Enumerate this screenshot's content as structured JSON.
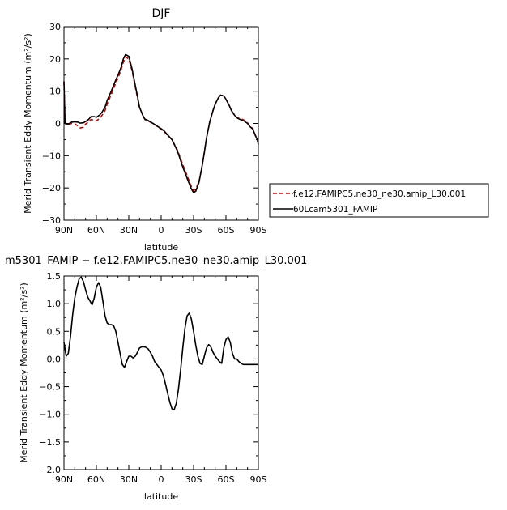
{
  "chart_data": [
    {
      "type": "line",
      "title": "DJF",
      "xlabel": "latitude",
      "ylabel": "Merid Transient Eddy Momentum (m²/s²)",
      "xlim": [
        90,
        -90
      ],
      "ylim": [
        -30,
        30
      ],
      "xticks": [
        "90N",
        "60N",
        "30N",
        "0",
        "30S",
        "60S",
        "90S"
      ],
      "yticks": [
        "30",
        "20",
        "10",
        "0",
        "−10",
        "−20",
        "−30"
      ],
      "grid": false,
      "legend_position": "right, outside plot",
      "series": [
        {
          "name": "f.e12.FAMIPC5.ne30_ne30.amip_L30.001",
          "color": "#d00000",
          "dash": "dashed",
          "x": [
            90,
            89,
            87,
            85,
            83,
            80,
            77,
            75,
            72,
            70,
            67,
            65,
            62,
            60,
            57,
            55,
            52,
            50,
            47,
            45,
            42,
            40,
            37,
            35,
            33,
            30,
            27,
            25,
            22,
            20,
            17,
            15,
            12,
            10,
            7,
            5,
            2,
            0,
            -3,
            -5,
            -10,
            -15,
            -20,
            -25,
            -28,
            -30,
            -32,
            -35,
            -38,
            -40,
            -42,
            -45,
            -48,
            -50,
            -53,
            -55,
            -58,
            -60,
            -63,
            -65,
            -68,
            -70,
            -72,
            -75,
            -77,
            -80,
            -82,
            -85,
            -87,
            -89,
            -90
          ],
          "y": [
            13,
            0,
            -0.3,
            -0.2,
            0,
            -0.1,
            -0.8,
            -1.4,
            -1.2,
            -0.2,
            0.5,
            1.2,
            1.0,
            0.8,
            1.5,
            2.4,
            4.0,
            6.0,
            8.4,
            10.0,
            12.6,
            14.0,
            16.8,
            19.0,
            20.6,
            20.0,
            16.4,
            13.0,
            8.0,
            5.0,
            2.5,
            1.2,
            0.8,
            0.4,
            -0.2,
            -0.6,
            -1.3,
            -1.8,
            -2.6,
            -3.4,
            -5.0,
            -8.2,
            -12.8,
            -17.0,
            -19.6,
            -20.8,
            -20.4,
            -18.0,
            -13.0,
            -9.0,
            -4.5,
            0.5,
            4.0,
            6.0,
            7.9,
            8.8,
            8.5,
            7.5,
            5.6,
            4.0,
            2.6,
            1.9,
            1.6,
            1.3,
            1.0,
            0.2,
            -0.8,
            -1.6,
            -3.5,
            -5.0,
            -6.5
          ]
        },
        {
          "name": "60Lcam5301_FAMIP",
          "color": "#000000",
          "dash": "solid",
          "x": [
            90,
            89,
            87,
            85,
            83,
            80,
            77,
            75,
            72,
            70,
            67,
            65,
            62,
            60,
            57,
            55,
            52,
            50,
            47,
            45,
            42,
            40,
            37,
            35,
            33,
            30,
            27,
            25,
            22,
            20,
            17,
            15,
            12,
            10,
            7,
            5,
            2,
            0,
            -3,
            -5,
            -10,
            -15,
            -20,
            -25,
            -28,
            -30,
            -32,
            -35,
            -38,
            -40,
            -42,
            -45,
            -48,
            -50,
            -53,
            -55,
            -58,
            -60,
            -63,
            -65,
            -68,
            -70,
            -72,
            -75,
            -77,
            -80,
            -82,
            -85,
            -87,
            -89,
            -90
          ],
          "y": [
            13,
            0,
            -0.2,
            0,
            0.4,
            0.5,
            0.4,
            0.1,
            0.2,
            0.6,
            1.3,
            2.1,
            2.1,
            1.9,
            2.6,
            3.4,
            5.0,
            7.1,
            9.4,
            11.0,
            13.5,
            15.0,
            17.5,
            20.0,
            21.4,
            20.8,
            17.0,
            13.5,
            8.5,
            5.0,
            2.5,
            1.3,
            0.9,
            0.5,
            -0.1,
            -0.5,
            -1.2,
            -1.6,
            -2.4,
            -3.2,
            -5.0,
            -8.5,
            -13.5,
            -17.8,
            -20.3,
            -21.5,
            -21.0,
            -18.3,
            -13.0,
            -9.0,
            -4.5,
            0.5,
            4.0,
            6.0,
            8.0,
            8.8,
            8.5,
            7.5,
            5.6,
            4.0,
            2.5,
            1.8,
            1.4,
            1.0,
            0.7,
            0.0,
            -0.9,
            -1.8,
            -3.6,
            -5.0,
            -6.5
          ]
        }
      ]
    },
    {
      "type": "line",
      "title": "m5301_FAMIP − f.e12.FAMIPC5.ne30_ne30.amip_L30.001",
      "xlabel": "latitude",
      "ylabel": "Merid Transient Eddy Momentum (m²/s²)",
      "xlim": [
        90,
        -90
      ],
      "ylim": [
        -2.0,
        1.5
      ],
      "xticks": [
        "90N",
        "60N",
        "30N",
        "0",
        "30S",
        "60S",
        "90S"
      ],
      "yticks": [
        "1.5",
        "1.0",
        "0.5",
        "0.0",
        "−0.5",
        "−1.0",
        "−1.5",
        "−2.0"
      ],
      "grid": false,
      "series": [
        {
          "color": "#000000",
          "dash": "solid",
          "x": [
            90,
            88,
            86,
            84,
            82,
            80,
            78,
            76,
            74,
            72,
            70,
            68,
            66,
            64,
            62,
            60,
            58,
            56,
            54,
            52,
            50,
            48,
            46,
            44,
            42,
            40,
            38,
            36,
            34,
            32,
            30,
            28,
            26,
            24,
            22,
            20,
            18,
            16,
            14,
            12,
            10,
            8,
            6,
            4,
            2,
            0,
            -2,
            -4,
            -6,
            -8,
            -10,
            -12,
            -14,
            -16,
            -18,
            -20,
            -22,
            -24,
            -26,
            -28,
            -30,
            -32,
            -34,
            -36,
            -38,
            -40,
            -42,
            -44,
            -46,
            -48,
            -50,
            -52,
            -54,
            -56,
            -58,
            -60,
            -62,
            -64,
            -66,
            -68,
            -70,
            -72,
            -74,
            -76,
            -78,
            -80,
            -82,
            -84,
            -86,
            -88,
            -90
          ],
          "y": [
            0.3,
            0.05,
            0.1,
            0.4,
            0.8,
            1.1,
            1.3,
            1.45,
            1.48,
            1.4,
            1.25,
            1.12,
            1.05,
            0.98,
            1.1,
            1.3,
            1.38,
            1.3,
            1.05,
            0.78,
            0.65,
            0.62,
            0.62,
            0.6,
            0.5,
            0.3,
            0.1,
            -0.1,
            -0.15,
            -0.05,
            0.05,
            0.05,
            0.02,
            0.05,
            0.12,
            0.2,
            0.22,
            0.22,
            0.21,
            0.18,
            0.12,
            0.05,
            -0.05,
            -0.1,
            -0.15,
            -0.2,
            -0.3,
            -0.45,
            -0.62,
            -0.78,
            -0.9,
            -0.92,
            -0.8,
            -0.55,
            -0.2,
            0.2,
            0.55,
            0.78,
            0.83,
            0.72,
            0.5,
            0.25,
            0.05,
            -0.08,
            -0.1,
            0.05,
            0.2,
            0.26,
            0.22,
            0.12,
            0.05,
            0.0,
            -0.05,
            -0.08,
            0.2,
            0.35,
            0.4,
            0.3,
            0.1,
            0.0,
            0.0,
            -0.05,
            -0.08,
            -0.1,
            -0.1,
            -0.1,
            -0.1,
            -0.1,
            -0.1,
            -0.1,
            -0.1
          ]
        }
      ]
    }
  ]
}
